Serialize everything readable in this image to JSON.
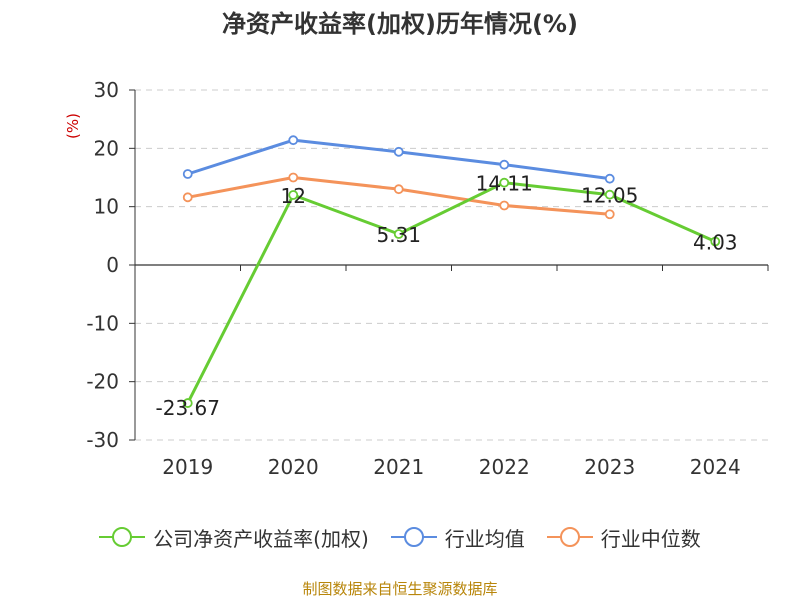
{
  "chart_data": {
    "type": "line",
    "title": "净资产收益率(加权)历年情况(%)",
    "ylabel": "(%)",
    "xlabel": "",
    "categories": [
      "2019",
      "2020",
      "2021",
      "2022",
      "2023",
      "2024"
    ],
    "ylim": [
      -30,
      30
    ],
    "yticks": [
      30,
      20,
      10,
      0,
      -10,
      -20,
      -30
    ],
    "grid": true,
    "legend_position": "bottom",
    "series": [
      {
        "name": "公司净资产收益率(加权)",
        "color": "#66cc33",
        "values": [
          -23.67,
          12,
          5.31,
          14.11,
          12.05,
          4.03
        ],
        "labels": [
          "-23.67",
          "12",
          "5.31",
          "14.11",
          "12.05",
          "4.03"
        ]
      },
      {
        "name": "行业均值",
        "color": "#5b8ce0",
        "values": [
          15.6,
          21.4,
          19.4,
          17.2,
          14.8,
          null
        ]
      },
      {
        "name": "行业中位数",
        "color": "#f4935a",
        "values": [
          11.6,
          15.0,
          13.0,
          10.2,
          8.7,
          null
        ]
      }
    ]
  },
  "source_note": "制图数据来自恒生聚源数据库",
  "colors": {
    "axis": "#333333",
    "grid": "#cccccc",
    "ylabel": "#cc0000",
    "source": "#b8860b"
  }
}
